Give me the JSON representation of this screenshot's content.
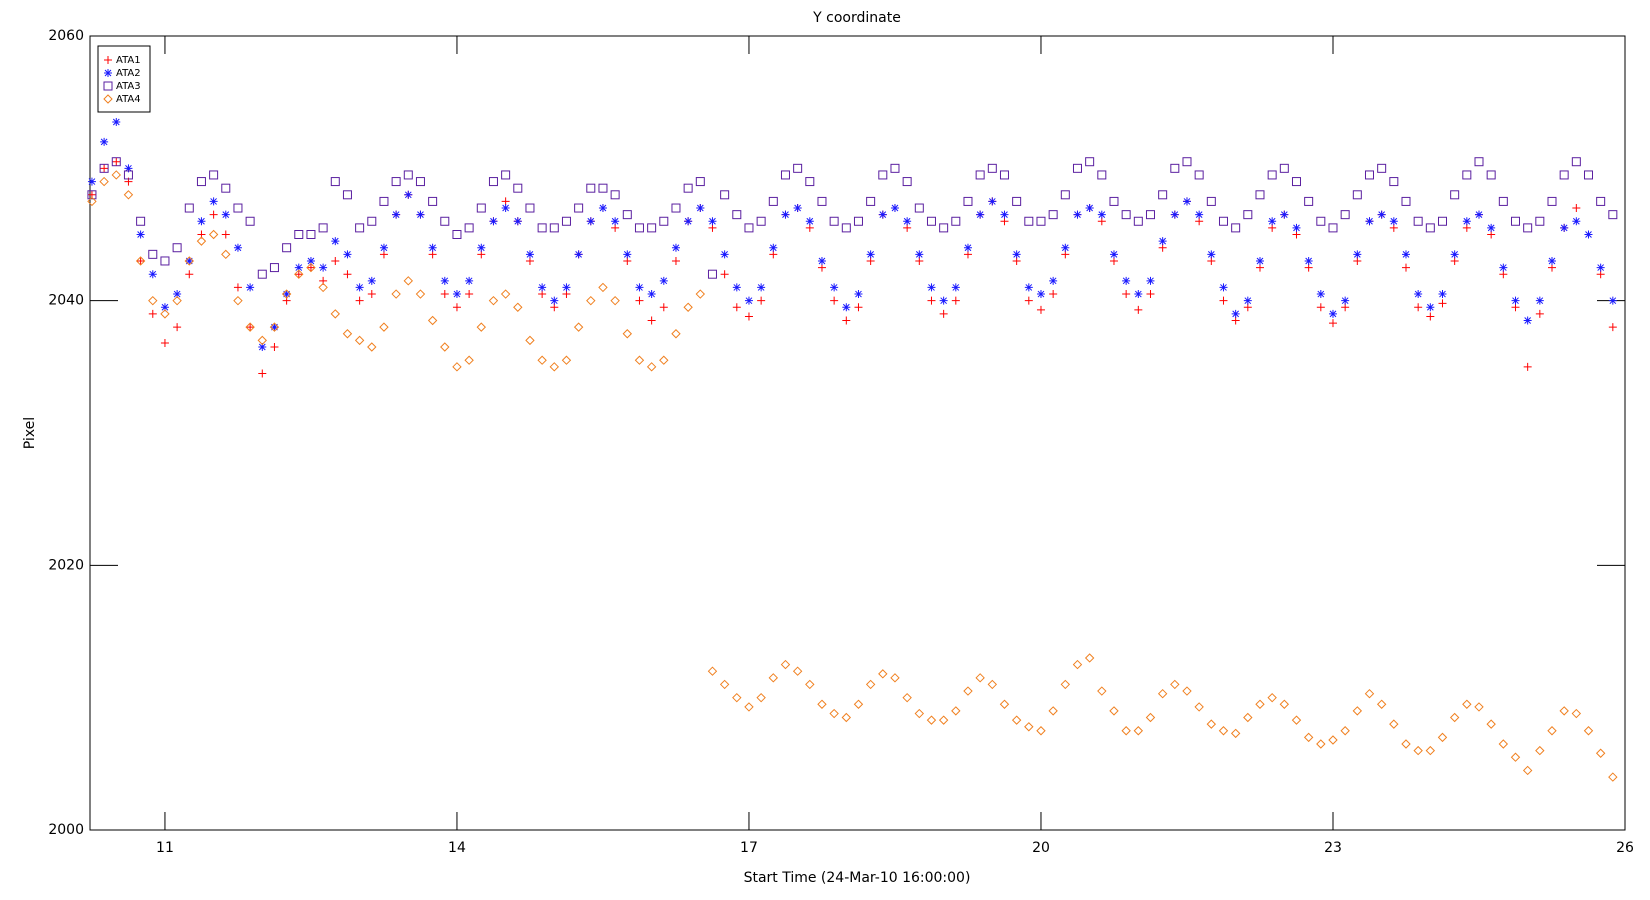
{
  "chart_data": {
    "type": "scatter",
    "title": "Y coordinate",
    "x_label": "Start Time (24-Mar-10 16:00:00)",
    "y_label": "Pixel",
    "xlim": [
      10.23,
      26
    ],
    "ylim": [
      2000,
      2060
    ],
    "xticks": [
      11,
      14,
      17,
      20,
      23,
      26
    ],
    "yticks": [
      2000,
      2020,
      2040,
      2060
    ],
    "grid": false,
    "legend_position": "top-left",
    "x": [
      10.25,
      10.375,
      10.5,
      10.625,
      10.75,
      10.875,
      11,
      11.125,
      11.25,
      11.375,
      11.5,
      11.625,
      11.75,
      11.875,
      12,
      12.125,
      12.25,
      12.375,
      12.5,
      12.625,
      12.75,
      12.875,
      13,
      13.125,
      13.25,
      13.375,
      13.5,
      13.625,
      13.75,
      13.875,
      14,
      14.125,
      14.25,
      14.375,
      14.5,
      14.625,
      14.75,
      14.875,
      15,
      15.125,
      15.25,
      15.375,
      15.5,
      15.625,
      15.75,
      15.875,
      16,
      16.125,
      16.25,
      16.375,
      16.5,
      16.625,
      16.75,
      16.875,
      17,
      17.125,
      17.25,
      17.375,
      17.5,
      17.625,
      17.75,
      17.875,
      18,
      18.125,
      18.25,
      18.375,
      18.5,
      18.625,
      18.75,
      18.875,
      19,
      19.125,
      19.25,
      19.375,
      19.5,
      19.625,
      19.75,
      19.875,
      20,
      20.125,
      20.25,
      20.375,
      20.5,
      20.625,
      20.75,
      20.875,
      21,
      21.125,
      21.25,
      21.375,
      21.5,
      21.625,
      21.75,
      21.875,
      22,
      22.125,
      22.25,
      22.375,
      22.5,
      22.625,
      22.75,
      22.875,
      23,
      23.125,
      23.25,
      23.375,
      23.5,
      23.625,
      23.75,
      23.875,
      24,
      24.125,
      24.25,
      24.375,
      24.5,
      24.625,
      24.75,
      24.875,
      25,
      25.125,
      25.25,
      25.375,
      25.5,
      25.625,
      25.75,
      25.875
    ],
    "series": [
      {
        "name": "ATA1",
        "color": "#ff0000",
        "marker": "plus",
        "values": [
          2048,
          2050,
          2050.5,
          2049,
          2043,
          2039,
          2036.8,
          2038,
          2042,
          2045,
          2046.5,
          2045,
          2041,
          2038,
          2034.5,
          2036.5,
          2040,
          2042,
          2042.5,
          2041.5,
          2043,
          2042,
          2040,
          2040.5,
          2043.5,
          2046.5,
          2048,
          2046.5,
          2043.5,
          2040.5,
          2039.5,
          2040.5,
          2043.5,
          2046,
          2047.5,
          2046,
          2043,
          2040.5,
          2039.5,
          2040.5,
          2043.5,
          2046,
          2047,
          2045.5,
          2043,
          2040,
          2038.5,
          2039.5,
          2043,
          2046,
          2047,
          2045.5,
          2042,
          2039.5,
          2038.8,
          2040,
          2043.5,
          2046.5,
          2047,
          2045.5,
          2042.5,
          2040,
          2038.5,
          2039.5,
          2043,
          2046.5,
          2047,
          2045.5,
          2043,
          2040,
          2039,
          2040,
          2043.5,
          2046.5,
          2047.5,
          2046,
          2043,
          2040,
          2039.3,
          2040.5,
          2043.5,
          2046.5,
          2047,
          2046,
          2043,
          2040.5,
          2039.3,
          2040.5,
          2044,
          2046.5,
          2047.5,
          2046,
          2043,
          2040,
          2038.5,
          2039.5,
          2042.5,
          2045.5,
          2046.5,
          2045,
          2042.5,
          2039.5,
          2038.3,
          2039.5,
          2043,
          2046,
          2046.5,
          2045.5,
          2042.5,
          2039.5,
          2038.8,
          2039.8,
          2043,
          2045.5,
          2046.5,
          2045,
          2042,
          2039.5,
          2035,
          2039,
          2042.5,
          2045.5,
          2047,
          2045,
          2042,
          2038
        ]
      },
      {
        "name": "ATA2",
        "color": "#1a1aff",
        "marker": "asterisk",
        "values": [
          2049,
          2052,
          2053.5,
          2050,
          2045,
          2042,
          2039.5,
          2040.5,
          2043,
          2046,
          2047.5,
          2046.5,
          2044,
          2041,
          2036.5,
          2038,
          2040.5,
          2042.5,
          2043,
          2042.5,
          2044.5,
          2043.5,
          2041,
          2041.5,
          2044,
          2046.5,
          2048,
          2046.5,
          2044,
          2041.5,
          2040.5,
          2041.5,
          2044,
          2046,
          2047,
          2046,
          2043.5,
          2041,
          2040,
          2041,
          2043.5,
          2046,
          2047,
          2046,
          2043.5,
          2041,
          2040.5,
          2041.5,
          2044,
          2046,
          2047,
          2046,
          2043.5,
          2041,
          2040,
          2041,
          2044,
          2046.5,
          2047,
          2046,
          2043,
          2041,
          2039.5,
          2040.5,
          2043.5,
          2046.5,
          2047,
          2046,
          2043.5,
          2041,
          2040,
          2041,
          2044,
          2046.5,
          2047.5,
          2046.5,
          2043.5,
          2041,
          2040.5,
          2041.5,
          2044,
          2046.5,
          2047,
          2046.5,
          2043.5,
          2041.5,
          2040.5,
          2041.5,
          2044.5,
          2046.5,
          2047.5,
          2046.5,
          2043.5,
          2041,
          2039,
          2040,
          2043,
          2046,
          2046.5,
          2045.5,
          2043,
          2040.5,
          2039,
          2040,
          2043.5,
          2046,
          2046.5,
          2046,
          2043.5,
          2040.5,
          2039.5,
          2040.5,
          2043.5,
          2046,
          2046.5,
          2045.5,
          2042.5,
          2040,
          2038.5,
          2040,
          2043,
          2045.5,
          2046,
          2045,
          2042.5,
          2040
        ]
      },
      {
        "name": "ATA3",
        "color": "#5a1fa0",
        "marker": "square",
        "values": [
          2048,
          2050,
          2050.5,
          2049.5,
          2046,
          2043.5,
          2043,
          2044,
          2047,
          2049,
          2049.5,
          2048.5,
          2047,
          2046,
          2042,
          2042.5,
          2044,
          2045,
          2045,
          2045.5,
          2049,
          2048,
          2045.5,
          2046,
          2047.5,
          2049,
          2049.5,
          2049,
          2047.5,
          2046,
          2045,
          2045.5,
          2047,
          2049,
          2049.5,
          2048.5,
          2047,
          2045.5,
          2045.5,
          2046,
          2047,
          2048.5,
          2048.5,
          2048,
          2046.5,
          2045.5,
          2045.5,
          2046,
          2047,
          2048.5,
          2049,
          2042,
          2048,
          2046.5,
          2045.5,
          2046,
          2047.5,
          2049.5,
          2050,
          2049,
          2047.5,
          2046,
          2045.5,
          2046,
          2047.5,
          2049.5,
          2050,
          2049,
          2047,
          2046,
          2045.5,
          2046,
          2047.5,
          2049.5,
          2050,
          2049.5,
          2047.5,
          2046,
          2046,
          2046.5,
          2048,
          2050,
          2050.5,
          2049.5,
          2047.5,
          2046.5,
          2046,
          2046.5,
          2048,
          2050,
          2050.5,
          2049.5,
          2047.5,
          2046,
          2045.5,
          2046.5,
          2048,
          2049.5,
          2050,
          2049,
          2047.5,
          2046,
          2045.5,
          2046.5,
          2048,
          2049.5,
          2050,
          2049,
          2047.5,
          2046,
          2045.5,
          2046,
          2048,
          2049.5,
          2050.5,
          2049.5,
          2047.5,
          2046,
          2045.5,
          2046,
          2047.5,
          2049.5,
          2050.5,
          2049.5,
          2047.5,
          2046.5
        ]
      },
      {
        "name": "ATA4",
        "color": "#f08020",
        "marker": "diamond",
        "values": [
          2047.5,
          2049,
          2049.5,
          2048,
          2043,
          2040,
          2039,
          2040,
          2043,
          2044.5,
          2045,
          2043.5,
          2040,
          2038,
          2037,
          2038,
          2040.5,
          2042,
          2042.5,
          2041,
          2039,
          2037.5,
          2037,
          2036.5,
          2038,
          2040.5,
          2041.5,
          2040.5,
          2038.5,
          2036.5,
          2035,
          2035.5,
          2038,
          2040,
          2040.5,
          2039.5,
          2037,
          2035.5,
          2035,
          2035.5,
          2038,
          2040,
          2041,
          2040,
          2037.5,
          2035.5,
          2035,
          2035.5,
          2037.5,
          2039.5,
          2040.5,
          2012,
          2011,
          2010,
          2009.3,
          2010,
          2011.5,
          2012.5,
          2012,
          2011,
          2009.5,
          2008.8,
          2008.5,
          2009.5,
          2011,
          2011.8,
          2011.5,
          2010,
          2008.8,
          2008.3,
          2008.3,
          2009,
          2010.5,
          2011.5,
          2011,
          2009.5,
          2008.3,
          2007.8,
          2007.5,
          2009,
          2011,
          2012.5,
          2013,
          2010.5,
          2009,
          2007.5,
          2007.5,
          2008.5,
          2010.3,
          2011,
          2010.5,
          2009.3,
          2008,
          2007.5,
          2007.3,
          2008.5,
          2009.5,
          2010,
          2009.5,
          2008.3,
          2007,
          2006.5,
          2006.8,
          2007.5,
          2009,
          2010.3,
          2009.5,
          2008,
          2006.5,
          2006,
          2006,
          2007,
          2008.5,
          2009.5,
          2009.3,
          2008,
          2006.5,
          2005.5,
          2004.5,
          2006,
          2007.5,
          2009,
          2008.8,
          2007.5,
          2005.8,
          2004
        ]
      }
    ]
  }
}
